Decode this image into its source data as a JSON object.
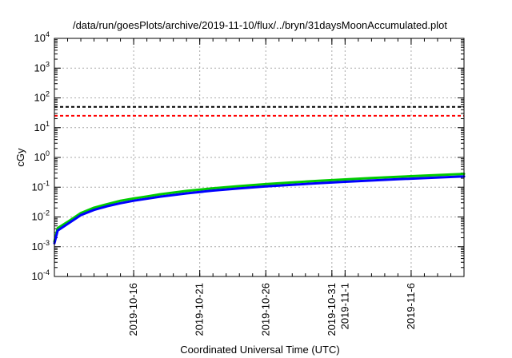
{
  "chart_data": {
    "type": "line",
    "title": "/data/run/goesPlots/archive/2019-11-10/flux/../bryn/31daysMoonAccumulated.plot",
    "xlabel": "Coordinated Universal Time (UTC)",
    "ylabel": "cGy",
    "x_scale": "time",
    "y_scale": "log",
    "xlim": [
      "2019-10-10",
      "2019-11-10"
    ],
    "ylim": [
      0.0001,
      10000
    ],
    "grid": true,
    "x_ticks": [
      {
        "date": "2019-10-16",
        "label": "2019-10-16"
      },
      {
        "date": "2019-10-21",
        "label": "2019-10-21"
      },
      {
        "date": "2019-10-26",
        "label": "2019-10-26"
      },
      {
        "date": "2019-10-31",
        "label": "2019-10-31"
      },
      {
        "date": "2019-11-01",
        "label": "2019-11-1"
      },
      {
        "date": "2019-11-06",
        "label": "2019-11-6"
      }
    ],
    "y_ticks": [
      {
        "value": 0.0001,
        "base": "10",
        "exp": "-4"
      },
      {
        "value": 0.001,
        "base": "10",
        "exp": "-3"
      },
      {
        "value": 0.01,
        "base": "10",
        "exp": "-2"
      },
      {
        "value": 0.1,
        "base": "10",
        "exp": "-1"
      },
      {
        "value": 1,
        "base": "10",
        "exp": "0"
      },
      {
        "value": 10,
        "base": "10",
        "exp": "1"
      },
      {
        "value": 100,
        "base": "10",
        "exp": "2"
      },
      {
        "value": 1000,
        "base": "10",
        "exp": "3"
      },
      {
        "value": 10000,
        "base": "10",
        "exp": "4"
      }
    ],
    "thresholds": [
      {
        "value": 50,
        "color": "#000000"
      },
      {
        "value": 25,
        "color": "#ff0000"
      }
    ],
    "series": [
      {
        "color": "#00cc00",
        "x": [
          "2019-10-10T00:00",
          "2019-10-10T06:00",
          "2019-10-11T00:00",
          "2019-10-12T00:00",
          "2019-10-13T00:00",
          "2019-10-14T00:00",
          "2019-10-15T00:00",
          "2019-10-16T00:00",
          "2019-10-17T00:00",
          "2019-10-18T00:00",
          "2019-10-20T00:00",
          "2019-10-22T00:00",
          "2019-10-24T00:00",
          "2019-10-26T00:00",
          "2019-10-28T00:00",
          "2019-10-30T00:00",
          "2019-11-01T00:00",
          "2019-11-03T00:00",
          "2019-11-05T00:00",
          "2019-11-07T00:00",
          "2019-11-10T00:00"
        ],
        "y": [
          0.0015,
          0.0042,
          0.0068,
          0.0135,
          0.0205,
          0.027,
          0.035,
          0.042,
          0.049,
          0.058,
          0.075,
          0.092,
          0.109,
          0.127,
          0.145,
          0.163,
          0.183,
          0.203,
          0.224,
          0.245,
          0.28
        ]
      },
      {
        "color": "#0000ff",
        "x": [
          "2019-10-10T00:00",
          "2019-10-10T06:00",
          "2019-10-11T00:00",
          "2019-10-12T00:00",
          "2019-10-13T00:00",
          "2019-10-14T00:00",
          "2019-10-15T00:00",
          "2019-10-16T00:00",
          "2019-10-17T00:00",
          "2019-10-18T00:00",
          "2019-10-20T00:00",
          "2019-10-22T00:00",
          "2019-10-24T00:00",
          "2019-10-26T00:00",
          "2019-10-28T00:00",
          "2019-10-30T00:00",
          "2019-11-01T00:00",
          "2019-11-03T00:00",
          "2019-11-05T00:00",
          "2019-11-07T00:00",
          "2019-11-10T00:00"
        ],
        "y": [
          0.0013,
          0.0035,
          0.0058,
          0.0115,
          0.0172,
          0.023,
          0.029,
          0.035,
          0.041,
          0.048,
          0.062,
          0.077,
          0.091,
          0.106,
          0.121,
          0.136,
          0.152,
          0.168,
          0.185,
          0.202,
          0.23
        ]
      }
    ]
  }
}
